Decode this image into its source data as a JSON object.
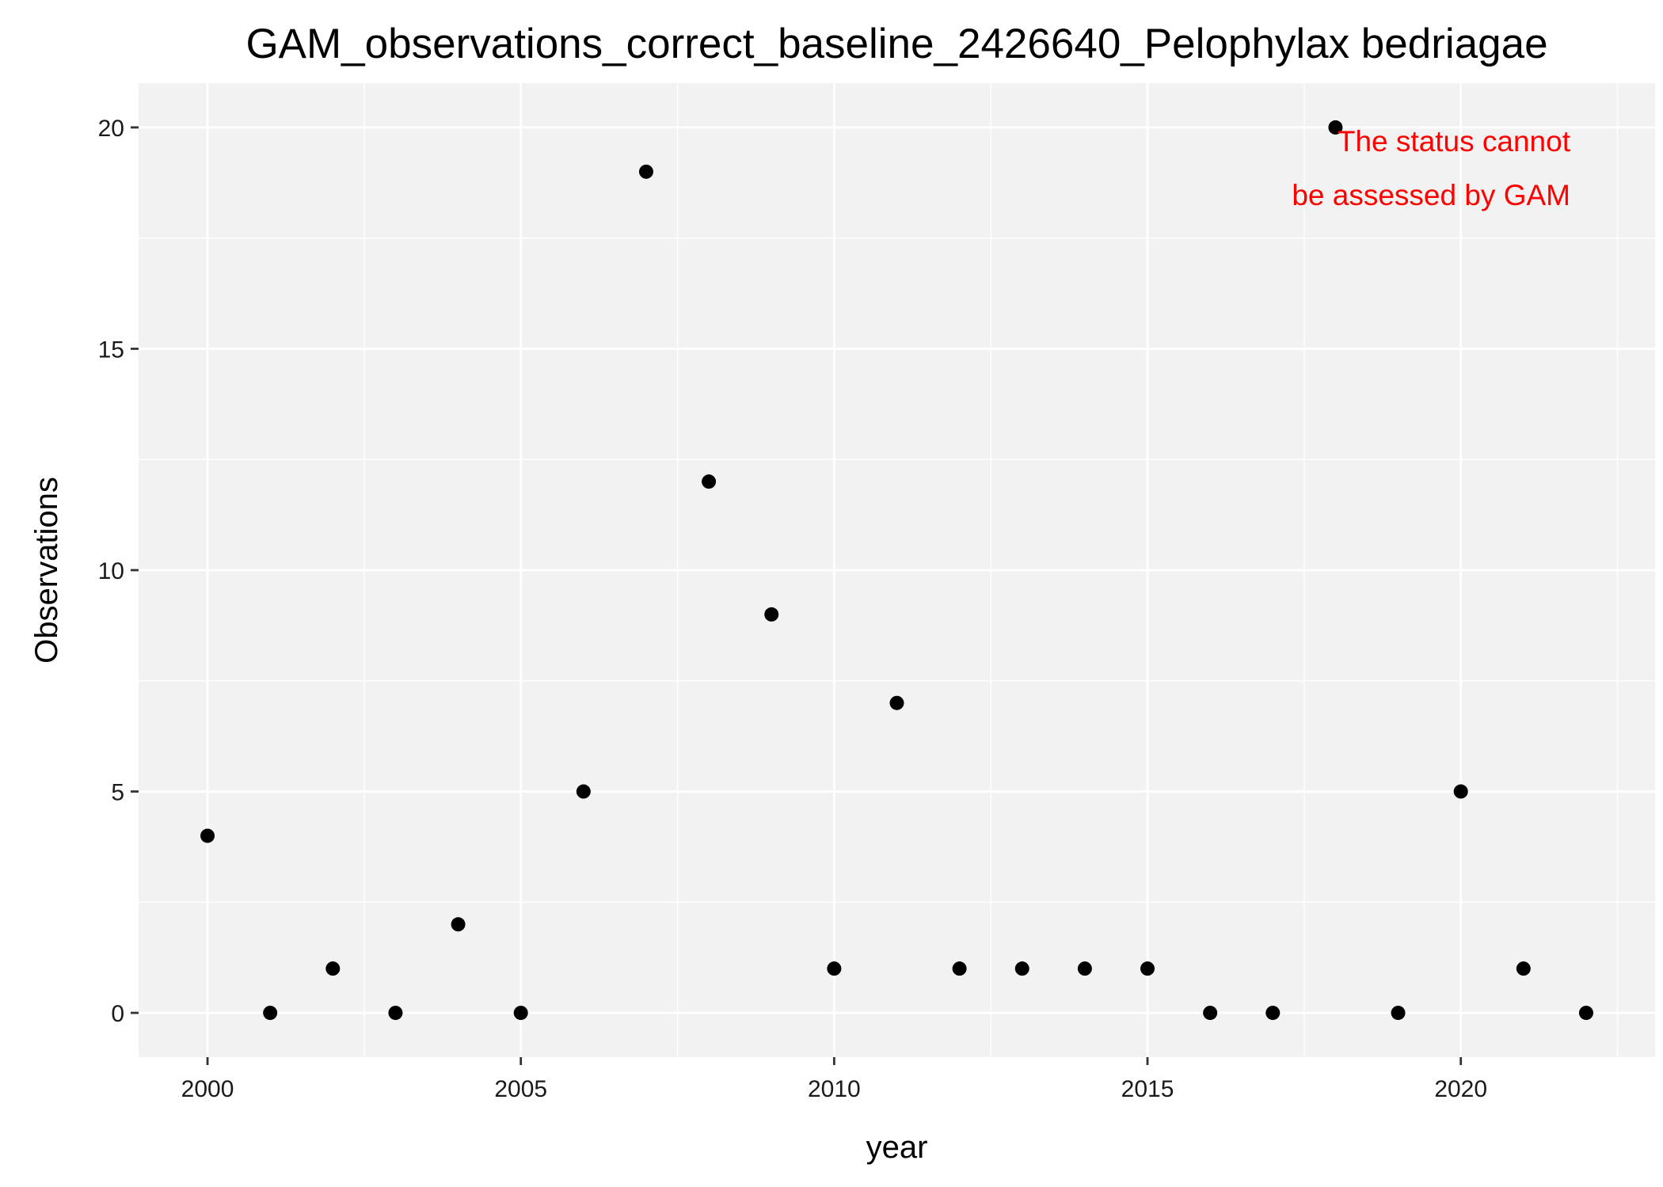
{
  "chart_data": {
    "type": "scatter",
    "title": "GAM_observations_correct_baseline_2426640_Pelophylax bedriagae",
    "xlabel": "year",
    "ylabel": "Observations",
    "xlim": [
      1998.9,
      2023.1
    ],
    "ylim": [
      -1.0,
      21.0
    ],
    "x_ticks": [
      2000,
      2005,
      2010,
      2015,
      2020
    ],
    "x_minor_ticks": [
      2002.5,
      2007.5,
      2012.5,
      2017.5,
      2022.5
    ],
    "y_ticks": [
      0,
      5,
      10,
      15,
      20
    ],
    "y_minor_ticks": [
      2.5,
      7.5,
      12.5,
      17.5
    ],
    "grid": true,
    "panel_background": "#f2f2f2",
    "grid_color": "#ffffff",
    "point_color": "#000000",
    "points": [
      {
        "x": 2000,
        "y": 4
      },
      {
        "x": 2001,
        "y": 0
      },
      {
        "x": 2002,
        "y": 1
      },
      {
        "x": 2003,
        "y": 0
      },
      {
        "x": 2004,
        "y": 2
      },
      {
        "x": 2005,
        "y": 0
      },
      {
        "x": 2006,
        "y": 5
      },
      {
        "x": 2007,
        "y": 19
      },
      {
        "x": 2008,
        "y": 12
      },
      {
        "x": 2009,
        "y": 9
      },
      {
        "x": 2010,
        "y": 1
      },
      {
        "x": 2011,
        "y": 7
      },
      {
        "x": 2012,
        "y": 1
      },
      {
        "x": 2013,
        "y": 1
      },
      {
        "x": 2014,
        "y": 1
      },
      {
        "x": 2015,
        "y": 1
      },
      {
        "x": 2016,
        "y": 0
      },
      {
        "x": 2017,
        "y": 0
      },
      {
        "x": 2018,
        "y": 20
      },
      {
        "x": 2019,
        "y": 0
      },
      {
        "x": 2020,
        "y": 5
      },
      {
        "x": 2021,
        "y": 1
      },
      {
        "x": 2022,
        "y": 0
      }
    ],
    "annotation": {
      "lines": [
        "The status cannot",
        "be assessed by GAM"
      ],
      "color": "#ff0000",
      "placement": "top-right"
    }
  }
}
